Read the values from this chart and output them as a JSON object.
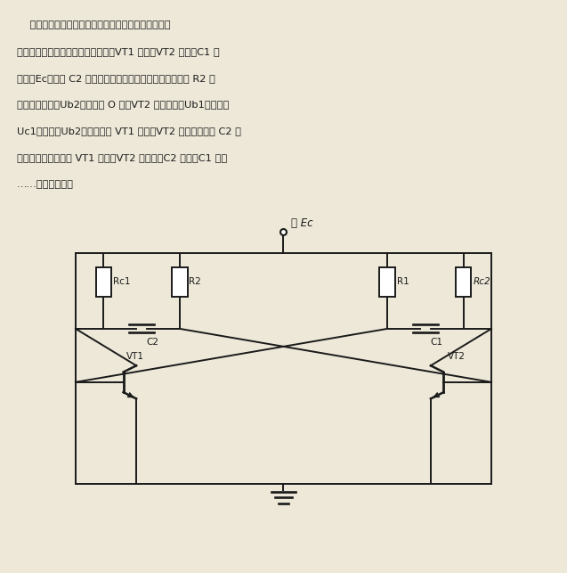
{
  "bg_color": "#ede8d8",
  "line_color": "#1a1a1a",
  "text_color": "#1a1a1a",
  "text_lines": [
    "    所示为晶体管自激多谐振荡器电路。当电路接通电源",
    "后，电路将不断翻转。设某一瞬间，VT1 导通，VT2 截止，C1 充",
    "电到－Ec，同时 C2 放电，由于放电电流衰减，放电电流在 R2 上",
    "的压降也下降，Ub2下降近于 O 时，VT2 导通，引起Ub1上升，而",
    "Uc1下降，使Ub2更下降直至 VT1 截止，VT2 饱和导通，而 C2 又",
    "放电，连锁反应。当 VT1 截止，VT2 导通时，C2 充电、C1 放电",
    "……，不断翻转。"
  ]
}
